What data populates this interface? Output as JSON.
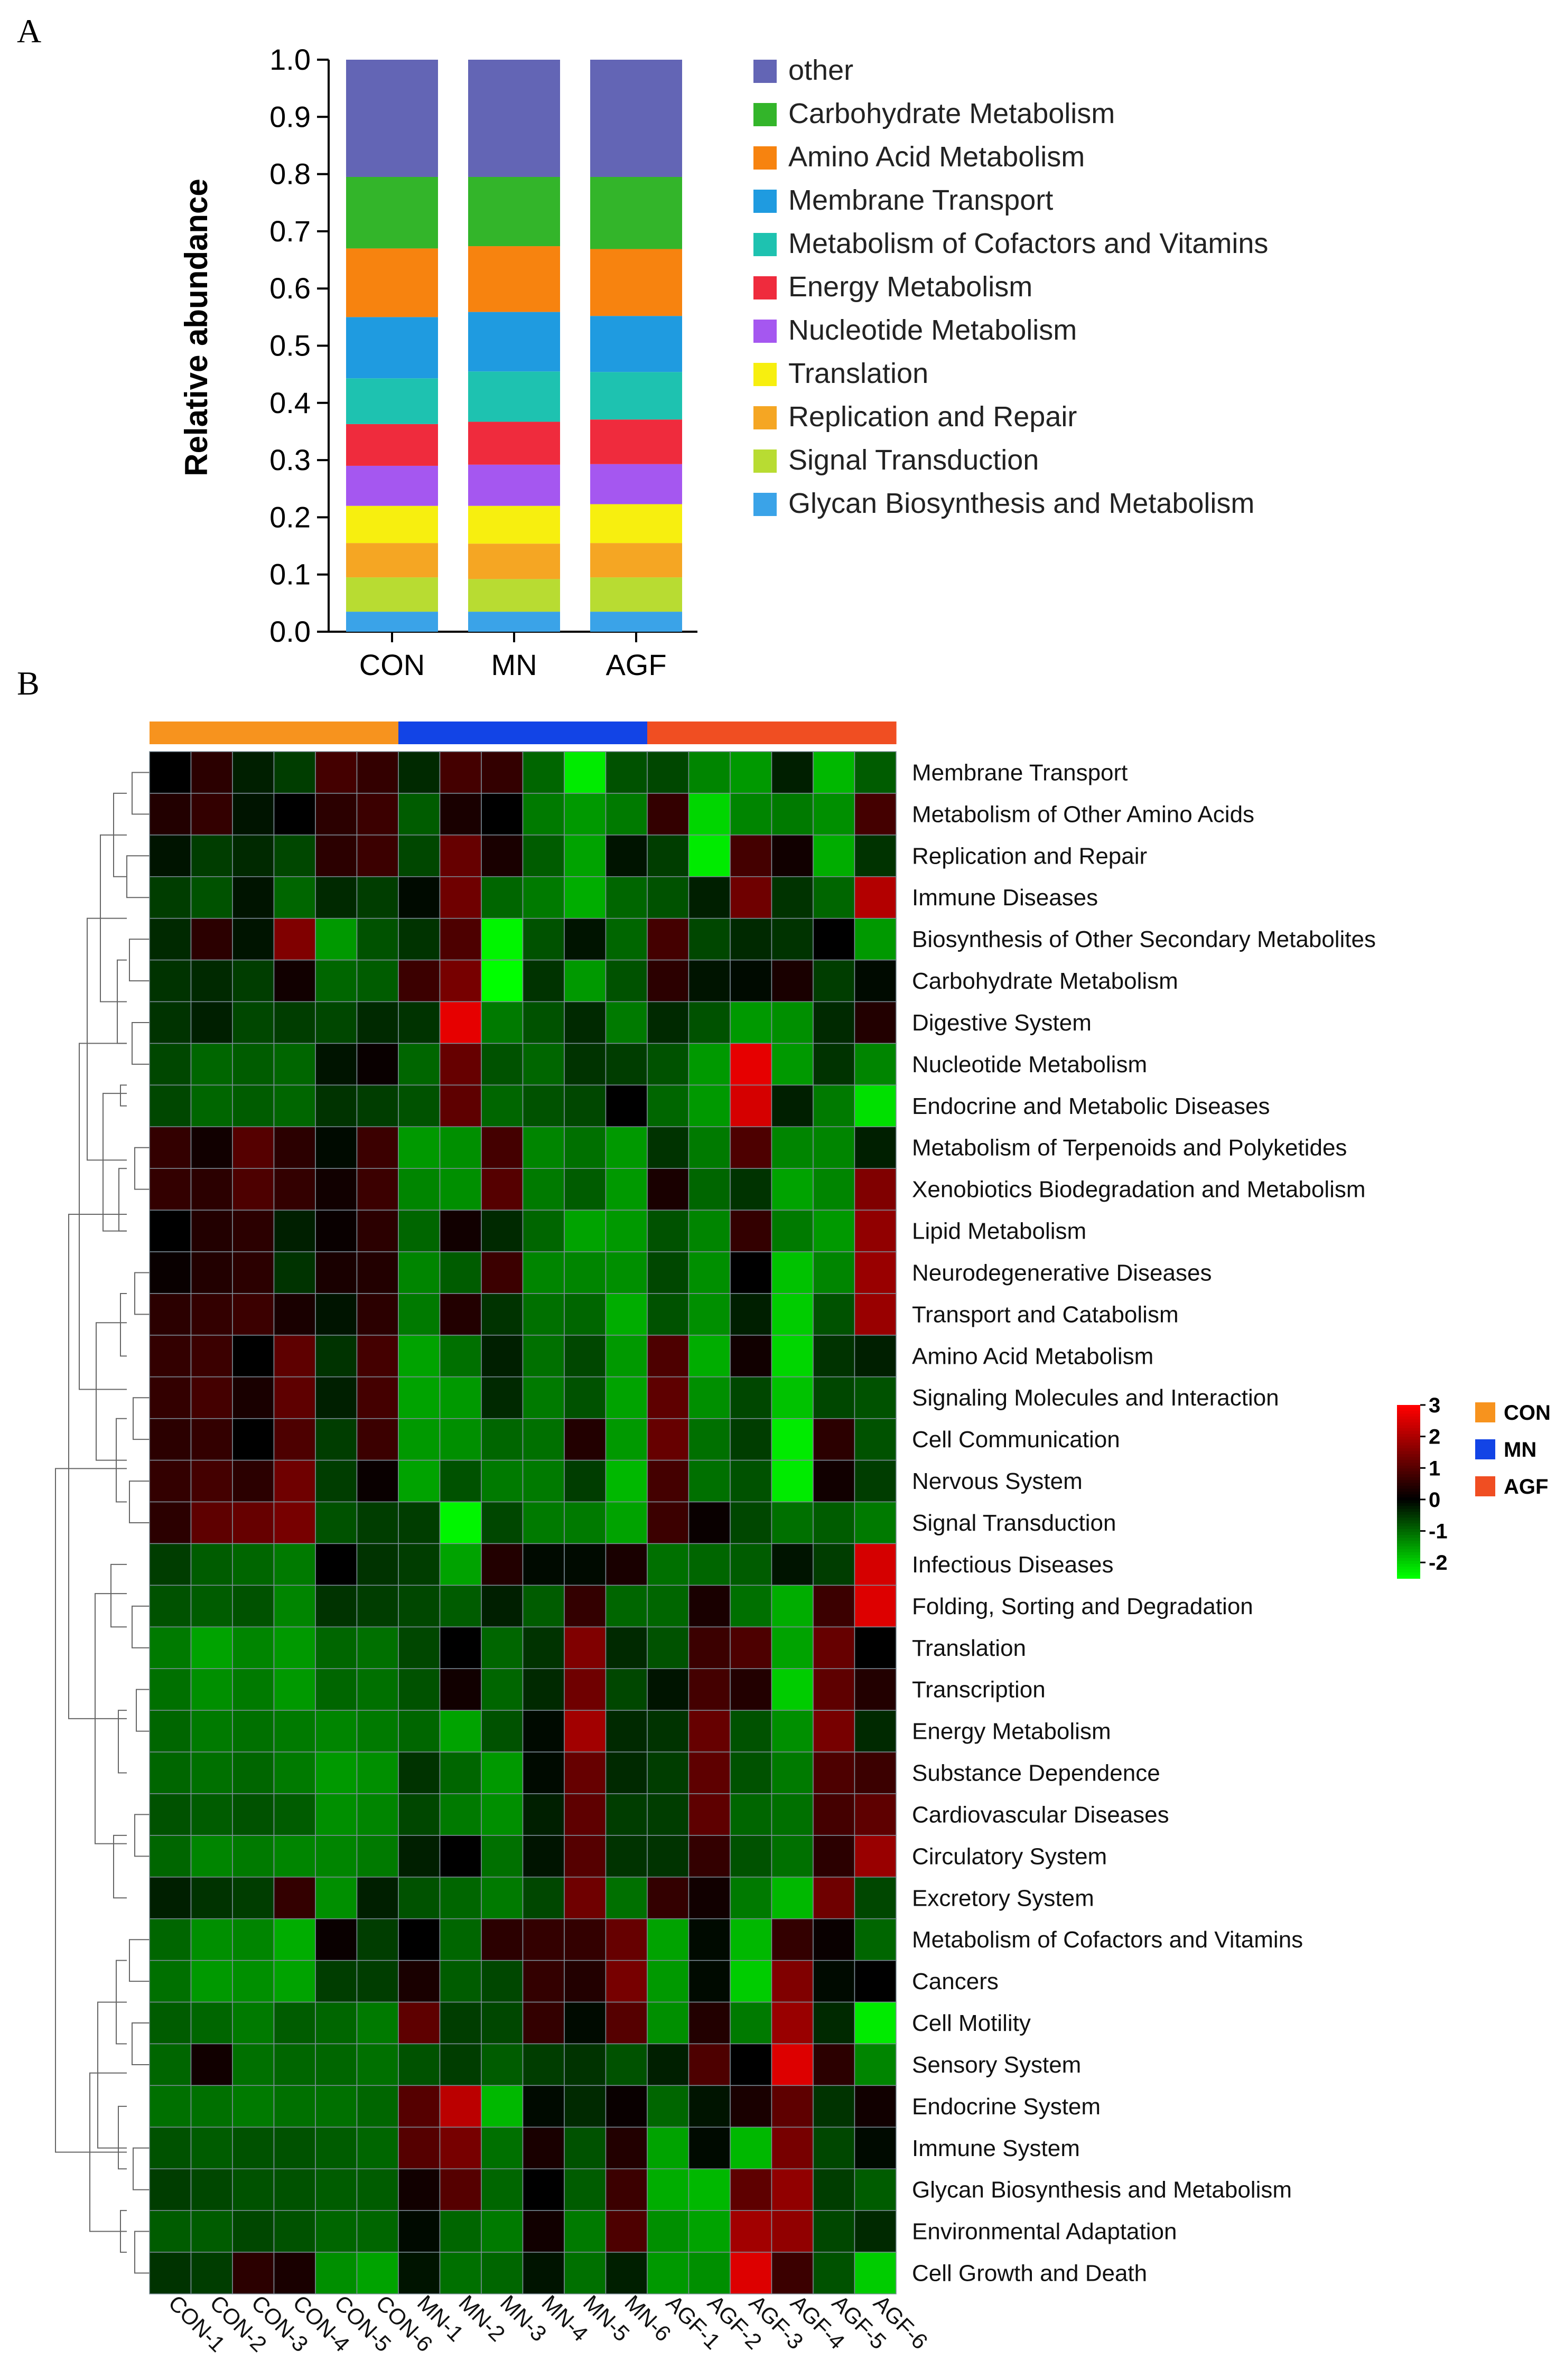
{
  "panels": {
    "a": "A",
    "b": "B"
  },
  "chart_data": [
    {
      "type": "bar",
      "stacked": true,
      "title": "",
      "xlabel": "",
      "ylabel": "Relative abundance",
      "ylim": [
        0,
        1.0
      ],
      "yticks": [
        "0.0",
        "0.1",
        "0.2",
        "0.3",
        "0.4",
        "0.5",
        "0.6",
        "0.7",
        "0.8",
        "0.9",
        "1.0"
      ],
      "categories": [
        "CON",
        "MN",
        "AGF"
      ],
      "series": [
        {
          "name": "Glycan Biosynthesis and Metabolism",
          "color": "#3aa3e8",
          "values": [
            0.035,
            0.035,
            0.035
          ]
        },
        {
          "name": "Signal Transduction",
          "color": "#b8dc32",
          "values": [
            0.06,
            0.057,
            0.06
          ]
        },
        {
          "name": "Replication and Repair",
          "color": "#f5a623",
          "values": [
            0.06,
            0.062,
            0.06
          ]
        },
        {
          "name": "Translation",
          "color": "#f7ef0f",
          "values": [
            0.065,
            0.066,
            0.068
          ]
        },
        {
          "name": "Nucleotide Metabolism",
          "color": "#a557f0",
          "values": [
            0.07,
            0.072,
            0.07
          ]
        },
        {
          "name": "Energy Metabolism",
          "color": "#ef2b3d",
          "values": [
            0.073,
            0.075,
            0.078
          ]
        },
        {
          "name": "Metabolism of Cofactors and Vitamins",
          "color": "#1ec2b0",
          "values": [
            0.08,
            0.088,
            0.083
          ]
        },
        {
          "name": "Membrane Transport",
          "color": "#1f9be0",
          "values": [
            0.107,
            0.104,
            0.098
          ]
        },
        {
          "name": "Amino Acid Metabolism",
          "color": "#f7830f",
          "values": [
            0.12,
            0.115,
            0.117
          ]
        },
        {
          "name": "Carbohydrate Metabolism",
          "color": "#33b52a",
          "values": [
            0.125,
            0.121,
            0.126
          ]
        },
        {
          "name": "other",
          "color": "#6365b5",
          "values": [
            0.205,
            0.205,
            0.205
          ]
        }
      ],
      "legend": [
        "other",
        "Carbohydrate Metabolism",
        "Amino Acid Metabolism",
        "Membrane Transport",
        "Metabolism of Cofactors and Vitamins",
        "Energy Metabolism",
        "Nucleotide Metabolism",
        "Translation",
        "Replication and Repair",
        "Signal Transduction",
        "Glycan Biosynthesis and Metabolism"
      ],
      "legend_position": "right"
    },
    {
      "type": "heatmap",
      "title": "",
      "columns": [
        "CON-1",
        "CON-2",
        "CON-3",
        "CON-4",
        "CON-5",
        "CON-6",
        "MN-1",
        "MN-2",
        "MN-3",
        "MN-4",
        "MN-5",
        "MN-6",
        "AGF-1",
        "AGF-2",
        "AGF-3",
        "AGF-4",
        "AGF-5",
        "AGF-6"
      ],
      "column_groups": [
        "CON",
        "CON",
        "CON",
        "CON",
        "CON",
        "CON",
        "MN",
        "MN",
        "MN",
        "MN",
        "MN",
        "MN",
        "AGF",
        "AGF",
        "AGF",
        "AGF",
        "AGF",
        "AGF"
      ],
      "groups": [
        {
          "name": "CON",
          "color": "#f7931e"
        },
        {
          "name": "MN",
          "color": "#1244e6"
        },
        {
          "name": "AGF",
          "color": "#f04e22"
        }
      ],
      "colorbar": {
        "ticks": [
          "3",
          "2",
          "1",
          "0",
          "-1",
          "-2"
        ],
        "range": [
          -2.5,
          3
        ],
        "low": "#00ff00",
        "mid": "#000000",
        "high": "#ff0000"
      },
      "rows": [
        "Membrane Transport",
        "Metabolism of Other Amino Acids",
        "Replication and Repair",
        "Immune Diseases",
        "Biosynthesis of Other Secondary Metabolites",
        "Carbohydrate Metabolism",
        "Digestive System",
        "Nucleotide Metabolism",
        "Endocrine and Metabolic Diseases",
        "Metabolism of Terpenoids and Polyketides",
        "Xenobiotics Biodegradation and Metabolism",
        "Lipid Metabolism",
        "Neurodegenerative Diseases",
        "Transport and Catabolism",
        "Amino Acid Metabolism",
        "Signaling Molecules and Interaction",
        "Cell Communication",
        "Nervous System",
        "Signal Transduction",
        "Infectious Diseases",
        "Folding, Sorting and Degradation",
        "Translation",
        "Transcription",
        "Energy Metabolism",
        "Substance Dependence",
        "Cardiovascular Diseases",
        "Circulatory System",
        "Excretory System",
        "Metabolism of Cofactors and Vitamins",
        "Cancers",
        "Cell Motility",
        "Sensory System",
        "Endocrine System",
        "Immune System",
        "Glycan Biosynthesis and Metabolism",
        "Environmental Adaptation",
        "Cell Growth and Death"
      ],
      "values": [
        [
          0.0,
          0.5,
          -0.3,
          -0.6,
          0.8,
          0.6,
          -0.4,
          0.8,
          0.6,
          -1.0,
          -2.3,
          -0.8,
          -0.7,
          -1.3,
          -1.5,
          -0.3,
          -1.8,
          -0.9
        ],
        [
          0.4,
          0.6,
          -0.2,
          0.0,
          0.5,
          0.7,
          -0.9,
          0.3,
          0.0,
          -1.2,
          -1.5,
          -1.2,
          0.6,
          -2.1,
          -1.3,
          -1.2,
          -1.4,
          0.8
        ],
        [
          -0.2,
          -0.6,
          -0.4,
          -0.7,
          0.5,
          0.7,
          -0.7,
          1.2,
          0.3,
          -0.9,
          -1.6,
          -0.2,
          -0.6,
          -2.3,
          0.8,
          0.2,
          -1.7,
          -0.5
        ],
        [
          -0.6,
          -0.8,
          -0.2,
          -1.0,
          -0.4,
          -0.6,
          -0.1,
          1.3,
          -1.0,
          -1.2,
          -1.7,
          -1.0,
          -0.8,
          -0.3,
          1.3,
          -0.5,
          -1.0,
          2.1
        ],
        [
          -0.4,
          0.5,
          -0.2,
          1.5,
          -1.5,
          -0.8,
          -0.5,
          0.9,
          -2.4,
          -0.8,
          -0.2,
          -1.0,
          0.8,
          -0.7,
          -0.4,
          -0.5,
          0.0,
          -1.5
        ],
        [
          -0.5,
          -0.4,
          -0.6,
          0.2,
          -1.0,
          -0.9,
          0.7,
          1.4,
          -2.5,
          -0.5,
          -1.5,
          -0.8,
          0.5,
          -0.2,
          -0.1,
          0.3,
          -0.6,
          -0.1
        ],
        [
          -0.5,
          -0.3,
          -0.7,
          -0.6,
          -0.7,
          -0.4,
          -0.5,
          2.7,
          -1.2,
          -0.8,
          -0.4,
          -1.2,
          -0.4,
          -0.8,
          -1.5,
          -1.4,
          -0.4,
          0.4
        ],
        [
          -0.7,
          -1.0,
          -0.9,
          -1.0,
          -0.2,
          0.1,
          -1.0,
          1.2,
          -0.8,
          -1.0,
          -0.5,
          -0.6,
          -0.8,
          -1.5,
          2.7,
          -1.5,
          -0.5,
          -1.3
        ],
        [
          -0.7,
          -1.0,
          -0.9,
          -1.0,
          -0.5,
          -0.6,
          -0.8,
          1.1,
          -1.0,
          -0.8,
          -0.7,
          0.0,
          -1.0,
          -1.5,
          2.5,
          -0.3,
          -1.2,
          -2.2
        ],
        [
          0.6,
          0.2,
          1.0,
          0.5,
          -0.1,
          0.7,
          -1.5,
          -1.4,
          0.8,
          -1.3,
          -1.1,
          -1.5,
          -0.5,
          -1.2,
          0.9,
          -1.3,
          -1.3,
          -0.3
        ],
        [
          0.6,
          0.5,
          0.9,
          0.6,
          0.2,
          0.7,
          -1.3,
          -1.4,
          1.0,
          -1.2,
          -0.9,
          -1.5,
          0.3,
          -1.0,
          -0.5,
          -1.6,
          -1.3,
          1.5
        ],
        [
          0.0,
          0.4,
          0.5,
          -0.3,
          0.1,
          0.5,
          -1.0,
          0.2,
          -0.4,
          -1.0,
          -1.6,
          -1.5,
          -0.8,
          -1.3,
          0.6,
          -1.2,
          -1.5,
          1.7
        ],
        [
          0.1,
          0.4,
          0.5,
          -0.5,
          0.3,
          0.4,
          -1.3,
          -0.9,
          0.7,
          -1.3,
          -1.3,
          -1.4,
          -0.7,
          -1.4,
          0.0,
          -1.9,
          -1.3,
          1.8
        ],
        [
          0.5,
          0.6,
          0.7,
          0.3,
          -0.2,
          0.5,
          -1.2,
          0.4,
          -0.5,
          -1.1,
          -1.0,
          -1.7,
          -0.8,
          -1.4,
          -0.3,
          -2.0,
          -0.8,
          1.8
        ],
        [
          0.6,
          0.7,
          0.0,
          1.1,
          -0.5,
          0.8,
          -1.6,
          -1.1,
          -0.3,
          -1.1,
          -0.7,
          -1.5,
          0.9,
          -1.7,
          0.2,
          -2.1,
          -0.5,
          -0.3
        ],
        [
          0.6,
          0.8,
          0.3,
          1.1,
          -0.3,
          0.8,
          -1.6,
          -1.5,
          -0.4,
          -1.2,
          -0.8,
          -1.6,
          1.1,
          -1.4,
          -0.7,
          -1.9,
          -0.7,
          -0.8
        ],
        [
          0.5,
          0.6,
          0.0,
          0.9,
          -0.6,
          0.7,
          -1.5,
          -1.4,
          -1.0,
          -1.1,
          0.4,
          -1.5,
          1.2,
          -1.1,
          -0.6,
          -2.3,
          0.5,
          -0.8
        ],
        [
          0.6,
          0.8,
          0.5,
          1.3,
          -0.6,
          0.1,
          -1.6,
          -0.8,
          -1.2,
          -1.2,
          -0.6,
          -1.8,
          0.8,
          -1.1,
          -0.8,
          -2.3,
          0.2,
          -0.6
        ],
        [
          0.5,
          1.1,
          1.2,
          1.4,
          -0.8,
          -0.6,
          -0.6,
          -2.4,
          -0.7,
          -1.2,
          -1.2,
          -1.6,
          0.7,
          0.1,
          -0.7,
          -1.1,
          -0.9,
          -1.2
        ],
        [
          -0.6,
          -0.9,
          -1.0,
          -1.2,
          0.0,
          -0.5,
          -0.6,
          -1.6,
          0.4,
          -0.1,
          -0.1,
          0.3,
          -1.1,
          -1.0,
          -0.9,
          -0.2,
          -0.6,
          2.5
        ],
        [
          -0.8,
          -0.9,
          -0.8,
          -1.3,
          -0.5,
          -0.6,
          -0.7,
          -0.9,
          -0.3,
          -0.9,
          0.6,
          -1.0,
          -1.0,
          0.3,
          -1.1,
          -1.7,
          0.7,
          2.6
        ],
        [
          -1.2,
          -1.6,
          -1.3,
          -1.5,
          -1.0,
          -1.1,
          -0.7,
          0.0,
          -1.0,
          -0.5,
          1.5,
          -0.4,
          -0.8,
          0.7,
          0.9,
          -1.6,
          1.2,
          0.0
        ],
        [
          -1.1,
          -1.4,
          -1.2,
          -1.5,
          -1.0,
          -1.1,
          -0.8,
          0.2,
          -1.0,
          -0.4,
          1.3,
          -0.7,
          -0.2,
          0.8,
          0.4,
          -2.0,
          1.1,
          0.4
        ],
        [
          -1.0,
          -1.2,
          -1.1,
          -1.2,
          -1.3,
          -1.2,
          -1.0,
          -1.6,
          -0.8,
          -0.1,
          1.9,
          -0.4,
          -0.5,
          1.2,
          -0.8,
          -1.4,
          1.4,
          -0.4
        ],
        [
          -1.0,
          -1.1,
          -1.0,
          -1.2,
          -1.5,
          -1.4,
          -0.5,
          -1.0,
          -1.5,
          -0.1,
          1.2,
          -0.4,
          -0.6,
          1.1,
          -0.8,
          -1.2,
          0.9,
          0.7
        ],
        [
          -0.8,
          -0.9,
          -0.8,
          -0.9,
          -1.4,
          -1.3,
          -0.7,
          -1.2,
          -1.4,
          -0.3,
          1.1,
          -0.6,
          -0.6,
          1.1,
          -1.0,
          -1.1,
          0.8,
          1.1
        ],
        [
          -1.0,
          -1.3,
          -1.2,
          -1.3,
          -1.3,
          -1.2,
          -0.3,
          0.0,
          -1.1,
          -0.2,
          1.0,
          -0.5,
          -0.5,
          0.6,
          -0.8,
          -1.1,
          0.5,
          1.8
        ],
        [
          -0.3,
          -0.5,
          -0.6,
          0.6,
          -1.4,
          -0.3,
          -0.8,
          -1.0,
          -1.2,
          -0.7,
          1.3,
          -1.1,
          0.6,
          0.2,
          -1.2,
          -1.8,
          1.3,
          -0.7
        ],
        [
          -1.0,
          -1.4,
          -1.3,
          -1.7,
          0.1,
          -0.6,
          0.0,
          -1.0,
          0.5,
          0.6,
          0.6,
          1.2,
          -1.6,
          -0.1,
          -1.8,
          0.6,
          0.1,
          -1.0
        ],
        [
          -1.1,
          -1.5,
          -1.4,
          -1.6,
          -0.6,
          -0.6,
          0.3,
          -0.9,
          -0.7,
          0.6,
          0.4,
          1.4,
          -1.5,
          -0.1,
          -2.0,
          1.5,
          -0.1,
          0.0
        ],
        [
          -0.9,
          -1.0,
          -1.2,
          -0.9,
          -1.0,
          -1.2,
          1.1,
          -0.6,
          -0.7,
          0.6,
          -0.1,
          1.0,
          -1.4,
          0.4,
          -1.2,
          1.8,
          -0.4,
          -2.3
        ],
        [
          -1.0,
          0.2,
          -1.1,
          -1.0,
          -1.0,
          -1.1,
          -0.8,
          -0.6,
          -0.9,
          -0.6,
          -0.5,
          -0.8,
          -0.3,
          0.9,
          0.0,
          2.6,
          0.5,
          -1.3
        ],
        [
          -1.1,
          -1.1,
          -1.2,
          -1.1,
          -1.1,
          -1.0,
          1.0,
          2.2,
          -1.8,
          -0.1,
          -0.4,
          0.1,
          -1.0,
          -0.2,
          0.3,
          1.1,
          -0.5,
          0.2
        ],
        [
          -0.8,
          -0.9,
          -0.8,
          -0.8,
          -0.9,
          -1.0,
          1.0,
          1.4,
          -1.1,
          0.3,
          -0.8,
          0.4,
          -1.6,
          -0.1,
          -1.8,
          1.4,
          -0.7,
          -0.1
        ],
        [
          -0.6,
          -0.7,
          -0.8,
          -0.8,
          -0.9,
          -0.9,
          0.2,
          1.0,
          -1.0,
          0.0,
          -0.9,
          0.7,
          -1.7,
          -1.8,
          1.1,
          1.7,
          -0.6,
          -0.9
        ],
        [
          -0.9,
          -0.9,
          -0.7,
          -0.8,
          -1.0,
          -1.0,
          -0.1,
          -1.0,
          -1.2,
          0.2,
          -1.2,
          0.9,
          -1.4,
          -1.6,
          1.9,
          1.7,
          -0.7,
          -0.4
        ],
        [
          -0.5,
          -0.6,
          0.5,
          0.3,
          -1.4,
          -1.6,
          -0.2,
          -1.1,
          -1.0,
          -0.2,
          -1.1,
          -0.3,
          -1.5,
          -1.4,
          2.6,
          0.7,
          -0.8,
          -2.0
        ]
      ]
    }
  ]
}
